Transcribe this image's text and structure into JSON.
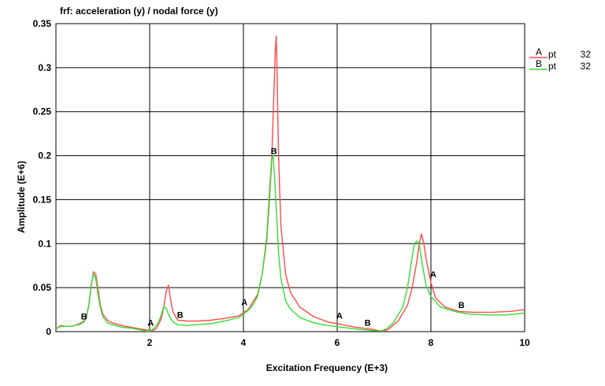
{
  "chart_data": {
    "type": "line",
    "title": "frf: acceleration (y) / nodal force (y)",
    "xlabel": "Excitation Frequency (E+3)",
    "ylabel": "Amplitude (E+6)",
    "xlim": [
      0,
      10
    ],
    "ylim": [
      0,
      0.35
    ],
    "x_ticks": [
      "2",
      "4",
      "6",
      "8",
      "10"
    ],
    "y_ticks": [
      "0",
      "0.05",
      "0.1",
      "0.15",
      "0.2",
      "0.25",
      "0.3",
      "0.35"
    ],
    "grid": true,
    "legend_position": "top-right",
    "series": [
      {
        "name": "A",
        "legend_label": "pt",
        "legend_value": "32",
        "color": "#ff4a4a",
        "x": [
          0.0,
          0.1,
          0.2,
          0.3,
          0.4,
          0.5,
          0.6,
          0.65,
          0.7,
          0.75,
          0.8,
          0.85,
          0.9,
          0.95,
          1.0,
          1.1,
          1.2,
          1.4,
          1.6,
          1.8,
          1.95,
          2.05,
          2.15,
          2.25,
          2.3,
          2.35,
          2.4,
          2.45,
          2.5,
          2.6,
          2.8,
          3.0,
          3.3,
          3.6,
          3.9,
          4.1,
          4.3,
          4.4,
          4.5,
          4.55,
          4.6,
          4.65,
          4.68,
          4.7,
          4.72,
          4.75,
          4.8,
          4.9,
          5.0,
          5.2,
          5.5,
          5.8,
          6.1,
          6.4,
          6.7,
          6.9,
          7.0,
          7.1,
          7.3,
          7.5,
          7.6,
          7.7,
          7.75,
          7.8,
          7.85,
          7.9,
          8.0,
          8.1,
          8.3,
          8.6,
          8.9,
          9.3,
          9.7,
          10.0
        ],
        "values": [
          0.003,
          0.007,
          0.006,
          0.006,
          0.007,
          0.009,
          0.012,
          0.018,
          0.03,
          0.05,
          0.068,
          0.065,
          0.048,
          0.03,
          0.02,
          0.013,
          0.01,
          0.007,
          0.005,
          0.003,
          0.002,
          0.0005,
          0.004,
          0.015,
          0.028,
          0.045,
          0.053,
          0.035,
          0.022,
          0.013,
          0.012,
          0.012,
          0.013,
          0.015,
          0.018,
          0.025,
          0.042,
          0.065,
          0.105,
          0.145,
          0.19,
          0.27,
          0.32,
          0.336,
          0.29,
          0.2,
          0.12,
          0.065,
          0.045,
          0.028,
          0.017,
          0.011,
          0.008,
          0.005,
          0.003,
          0.001,
          0.0005,
          0.003,
          0.012,
          0.03,
          0.05,
          0.08,
          0.1,
          0.111,
          0.1,
          0.082,
          0.056,
          0.038,
          0.028,
          0.023,
          0.022,
          0.022,
          0.023,
          0.025
        ]
      },
      {
        "name": "B",
        "legend_label": "pt",
        "legend_value": "32",
        "color": "#33dd33",
        "x": [
          0.0,
          0.1,
          0.2,
          0.3,
          0.4,
          0.5,
          0.6,
          0.65,
          0.7,
          0.75,
          0.8,
          0.85,
          0.9,
          0.95,
          1.0,
          1.1,
          1.2,
          1.4,
          1.6,
          1.8,
          1.95,
          2.0,
          2.05,
          2.15,
          2.2,
          2.25,
          2.3,
          2.35,
          2.4,
          2.45,
          2.5,
          2.6,
          2.8,
          3.0,
          3.3,
          3.6,
          3.9,
          4.1,
          4.2,
          4.3,
          4.4,
          4.5,
          4.55,
          4.6,
          4.63,
          4.66,
          4.7,
          4.75,
          4.8,
          4.9,
          5.0,
          5.2,
          5.5,
          5.8,
          6.1,
          6.4,
          6.6,
          6.8,
          6.95,
          7.05,
          7.2,
          7.4,
          7.5,
          7.6,
          7.65,
          7.7,
          7.75,
          7.8,
          7.85,
          7.9,
          8.0,
          8.2,
          8.5,
          8.8,
          9.2,
          9.6,
          10.0
        ],
        "values": [
          0.003,
          0.006,
          0.006,
          0.006,
          0.007,
          0.008,
          0.011,
          0.016,
          0.03,
          0.052,
          0.066,
          0.06,
          0.042,
          0.027,
          0.017,
          0.01,
          0.008,
          0.005,
          0.004,
          0.002,
          0.0005,
          0.0005,
          0.002,
          0.007,
          0.012,
          0.02,
          0.028,
          0.027,
          0.02,
          0.015,
          0.011,
          0.008,
          0.007,
          0.008,
          0.009,
          0.012,
          0.016,
          0.024,
          0.03,
          0.04,
          0.065,
          0.11,
          0.155,
          0.195,
          0.2,
          0.18,
          0.14,
          0.09,
          0.06,
          0.035,
          0.026,
          0.016,
          0.01,
          0.007,
          0.005,
          0.003,
          0.002,
          0.001,
          0.001,
          0.003,
          0.01,
          0.028,
          0.05,
          0.085,
          0.1,
          0.103,
          0.1,
          0.082,
          0.066,
          0.052,
          0.04,
          0.028,
          0.023,
          0.02,
          0.019,
          0.019,
          0.021
        ]
      }
    ],
    "markers": [
      {
        "label": "B",
        "x": 0.6,
        "y": 0.012
      },
      {
        "label": "A",
        "x": 2.02,
        "y": 0.005
      },
      {
        "label": "B",
        "x": 2.65,
        "y": 0.014
      },
      {
        "label": "A",
        "x": 4.02,
        "y": 0.028
      },
      {
        "label": "B",
        "x": 4.65,
        "y": 0.2
      },
      {
        "label": "A",
        "x": 6.05,
        "y": 0.013
      },
      {
        "label": "B",
        "x": 6.65,
        "y": 0.005
      },
      {
        "label": "A",
        "x": 8.05,
        "y": 0.06
      },
      {
        "label": "B",
        "x": 8.65,
        "y": 0.025
      }
    ]
  }
}
